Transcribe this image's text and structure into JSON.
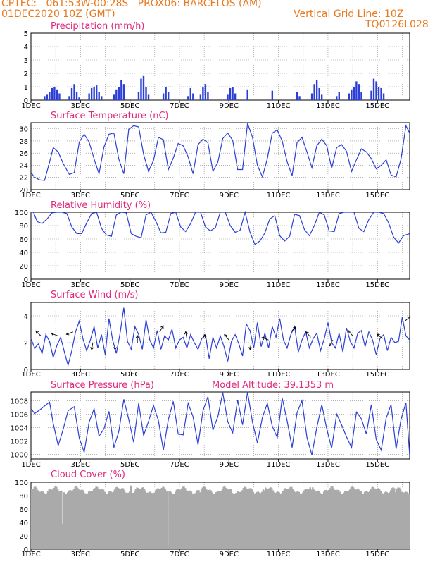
{
  "header": {
    "line1": "CPTEC:   061:53W-00:28S   PROX06: BARCELOS (AM)",
    "date": "01DEC2020 10Z (GMT)",
    "grid_note": "Vertical Grid Line: 10Z",
    "code": "TQ0126L028"
  },
  "x_ticks": [
    "1DEC",
    "3DEC",
    "5DEC",
    "7DEC",
    "9DEC",
    "11DEC",
    "13DEC",
    "15DEC"
  ],
  "colors": {
    "header": "#e8791f",
    "title": "#e0287c",
    "line": "#2b3fd6",
    "bar": "#2b3fd6",
    "cloud": "#aaaaaa"
  },
  "chart_data": [
    {
      "type": "bar",
      "title": "Precipitation (mm/h)",
      "ylim": [
        0,
        5
      ],
      "yticks": [
        0,
        1,
        2,
        3,
        4,
        5
      ],
      "x_range_days": [
        1,
        16.3
      ],
      "bars": [
        [
          1.55,
          0.3
        ],
        [
          1.65,
          0.4
        ],
        [
          1.75,
          0.6
        ],
        [
          1.85,
          0.9
        ],
        [
          1.95,
          1.0
        ],
        [
          2.05,
          0.8
        ],
        [
          2.15,
          0.5
        ],
        [
          2.55,
          0.3
        ],
        [
          2.65,
          0.9
        ],
        [
          2.75,
          1.2
        ],
        [
          2.85,
          0.6
        ],
        [
          2.95,
          0.2
        ],
        [
          3.35,
          0.5
        ],
        [
          3.45,
          0.9
        ],
        [
          3.55,
          1.0
        ],
        [
          3.65,
          1.1
        ],
        [
          3.75,
          0.6
        ],
        [
          3.85,
          0.3
        ],
        [
          4.35,
          0.4
        ],
        [
          4.45,
          0.8
        ],
        [
          4.55,
          1.0
        ],
        [
          4.65,
          1.5
        ],
        [
          4.75,
          1.2
        ],
        [
          5.35,
          0.6
        ],
        [
          5.45,
          1.6
        ],
        [
          5.55,
          1.8
        ],
        [
          5.65,
          1.0
        ],
        [
          5.75,
          0.4
        ],
        [
          6.35,
          0.5
        ],
        [
          6.45,
          1.0
        ],
        [
          6.55,
          0.6
        ],
        [
          7.35,
          0.3
        ],
        [
          7.45,
          0.9
        ],
        [
          7.55,
          0.5
        ],
        [
          7.85,
          0.4
        ],
        [
          7.95,
          1.0
        ],
        [
          8.05,
          1.2
        ],
        [
          8.15,
          0.6
        ],
        [
          8.95,
          0.4
        ],
        [
          9.05,
          0.9
        ],
        [
          9.15,
          1.0
        ],
        [
          9.25,
          0.5
        ],
        [
          9.75,
          0.8
        ],
        [
          10.75,
          0.7
        ],
        [
          11.75,
          0.6
        ],
        [
          11.85,
          0.3
        ],
        [
          12.35,
          0.5
        ],
        [
          12.45,
          1.2
        ],
        [
          12.55,
          1.5
        ],
        [
          12.65,
          0.9
        ],
        [
          12.75,
          0.4
        ],
        [
          13.35,
          0.3
        ],
        [
          13.45,
          0.6
        ],
        [
          13.85,
          0.5
        ],
        [
          13.95,
          0.8
        ],
        [
          14.05,
          1.0
        ],
        [
          14.15,
          1.4
        ],
        [
          14.25,
          1.2
        ],
        [
          14.35,
          0.6
        ],
        [
          14.75,
          0.7
        ],
        [
          14.85,
          1.6
        ],
        [
          14.95,
          1.4
        ],
        [
          15.05,
          1.0
        ],
        [
          15.15,
          0.9
        ],
        [
          15.25,
          0.5
        ]
      ]
    },
    {
      "type": "line",
      "title": "Surface Temperature (nC)",
      "ylim": [
        20,
        31
      ],
      "yticks": [
        20,
        22,
        24,
        26,
        28,
        30
      ],
      "x_range_days": [
        1,
        16.3
      ],
      "x": [
        1.0,
        1.15,
        1.35,
        1.55,
        1.75,
        1.9,
        2.1,
        2.3,
        2.55,
        2.75,
        2.95,
        3.15,
        3.35,
        3.6,
        3.75,
        3.95,
        4.15,
        4.35,
        4.55,
        4.75,
        4.95,
        5.15,
        5.35,
        5.55,
        5.75,
        5.95,
        6.15,
        6.35,
        6.55,
        6.75,
        6.95,
        7.15,
        7.35,
        7.55,
        7.75,
        7.95,
        8.15,
        8.35,
        8.55,
        8.75,
        8.95,
        9.15,
        9.35,
        9.55,
        9.75,
        9.95,
        10.15,
        10.35,
        10.55,
        10.75,
        10.95,
        11.15,
        11.35,
        11.55,
        11.75,
        11.95,
        12.15,
        12.35,
        12.55,
        12.75,
        12.95,
        13.15,
        13.35,
        13.55,
        13.75,
        13.95,
        14.15,
        14.35,
        14.55,
        14.75,
        14.95,
        15.15,
        15.35,
        15.55,
        15.75,
        15.95,
        16.15,
        16.3
      ],
      "y": [
        22.8,
        22.0,
        21.6,
        21.5,
        24.5,
        26.9,
        26.2,
        24.3,
        22.5,
        22.8,
        27.8,
        29.1,
        27.8,
        24.4,
        22.6,
        27.0,
        29.1,
        29.3,
        25.0,
        22.6,
        29.9,
        30.5,
        30.3,
        25.8,
        23.0,
        24.8,
        28.6,
        28.2,
        23.3,
        25.2,
        27.6,
        27.2,
        25.4,
        22.6,
        27.4,
        28.3,
        27.7,
        23.0,
        24.5,
        28.4,
        29.3,
        28.1,
        23.3,
        23.3,
        30.9,
        28.6,
        24.0,
        22.1,
        25.1,
        29.3,
        29.8,
        28.0,
        24.6,
        22.3,
        27.7,
        28.6,
        26.2,
        23.6,
        27.2,
        28.3,
        27.2,
        23.5,
        26.9,
        27.4,
        26.3,
        23.0,
        24.9,
        26.7,
        26.2,
        25.1,
        23.4,
        24.0,
        24.9,
        22.4,
        22.1,
        25.0,
        30.5,
        29.3
      ]
    },
    {
      "type": "line",
      "title": "Relative Humidity (%)",
      "ylim": [
        0,
        100
      ],
      "yticks": [
        0,
        20,
        40,
        60,
        80,
        100
      ],
      "x_range_days": [
        1,
        16.3
      ],
      "x": [
        1.0,
        1.1,
        1.25,
        1.45,
        1.65,
        1.85,
        2.05,
        2.25,
        2.45,
        2.65,
        2.85,
        3.05,
        3.25,
        3.45,
        3.65,
        3.85,
        4.05,
        4.25,
        4.45,
        4.65,
        4.85,
        5.05,
        5.25,
        5.45,
        5.65,
        5.85,
        6.05,
        6.25,
        6.45,
        6.65,
        6.85,
        7.05,
        7.25,
        7.45,
        7.65,
        7.85,
        8.05,
        8.25,
        8.45,
        8.65,
        8.85,
        9.05,
        9.25,
        9.45,
        9.65,
        9.85,
        10.05,
        10.25,
        10.45,
        10.65,
        10.85,
        11.05,
        11.25,
        11.45,
        11.65,
        11.85,
        12.05,
        12.25,
        12.45,
        12.65,
        12.85,
        13.05,
        13.25,
        13.45,
        13.65,
        13.85,
        14.05,
        14.25,
        14.45,
        14.65,
        14.85,
        15.05,
        15.25,
        15.45,
        15.65,
        15.85,
        16.05,
        16.3
      ],
      "y": [
        100,
        100,
        86,
        83,
        90,
        99,
        100,
        100,
        98,
        78,
        68,
        68,
        84,
        98,
        100,
        76,
        66,
        64,
        96,
        100,
        99,
        68,
        64,
        62,
        96,
        100,
        86,
        69,
        70,
        98,
        100,
        78,
        71,
        83,
        100,
        100,
        78,
        72,
        77,
        100,
        100,
        80,
        70,
        73,
        100,
        70,
        52,
        57,
        69,
        90,
        95,
        65,
        57,
        64,
        97,
        95,
        74,
        65,
        80,
        100,
        96,
        72,
        71,
        98,
        100,
        100,
        100,
        76,
        71,
        89,
        100,
        100,
        98,
        84,
        63,
        54,
        65,
        68
      ]
    },
    {
      "type": "line",
      "title": "Surface Wind (m/s)",
      "ylim": [
        0,
        5
      ],
      "yticks": [
        0,
        2,
        4
      ],
      "x_range_days": [
        1,
        16.3
      ],
      "x": [
        1.0,
        1.15,
        1.3,
        1.45,
        1.6,
        1.75,
        1.9,
        2.05,
        2.2,
        2.35,
        2.5,
        2.65,
        2.8,
        2.95,
        3.1,
        3.25,
        3.4,
        3.55,
        3.7,
        3.85,
        4.0,
        4.15,
        4.3,
        4.45,
        4.6,
        4.75,
        4.9,
        5.05,
        5.2,
        5.35,
        5.5,
        5.65,
        5.8,
        5.95,
        6.1,
        6.25,
        6.4,
        6.55,
        6.7,
        6.85,
        7.0,
        7.15,
        7.3,
        7.45,
        7.6,
        7.75,
        7.9,
        8.05,
        8.2,
        8.35,
        8.5,
        8.65,
        8.8,
        8.95,
        9.1,
        9.25,
        9.4,
        9.55,
        9.7,
        9.85,
        10.0,
        10.15,
        10.3,
        10.45,
        10.6,
        10.75,
        10.9,
        11.05,
        11.2,
        11.35,
        11.5,
        11.65,
        11.8,
        11.95,
        12.1,
        12.25,
        12.4,
        12.55,
        12.7,
        12.85,
        13.0,
        13.15,
        13.3,
        13.45,
        13.6,
        13.75,
        13.9,
        14.05,
        14.2,
        14.35,
        14.5,
        14.65,
        14.8,
        14.95,
        15.1,
        15.25,
        15.4,
        15.55,
        15.7,
        15.85,
        16.0,
        16.15,
        16.3
      ],
      "y": [
        2.3,
        1.6,
        1.9,
        1.2,
        2.6,
        2.1,
        0.9,
        1.8,
        2.4,
        1.3,
        0.3,
        1.4,
        2.8,
        3.6,
        2.3,
        1.4,
        2.2,
        3.2,
        1.6,
        2.6,
        1.1,
        3.8,
        2.2,
        1.2,
        2.7,
        4.6,
        2.1,
        1.5,
        3.2,
        2.6,
        1.5,
        3.7,
        2.2,
        1.6,
        2.9,
        1.5,
        2.5,
        2.2,
        3.0,
        1.6,
        2.2,
        2.4,
        1.6,
        2.6,
        2.0,
        1.5,
        2.3,
        2.6,
        0.8,
        2.4,
        1.6,
        2.5,
        1.7,
        0.6,
        2.1,
        2.6,
        1.9,
        1.0,
        3.4,
        2.9,
        1.6,
        3.5,
        1.7,
        2.7,
        1.6,
        3.2,
        2.4,
        3.8,
        2.2,
        1.6,
        2.6,
        3.2,
        1.3,
        2.2,
        2.8,
        1.6,
        2.3,
        2.7,
        1.4,
        2.3,
        3.5,
        2.0,
        1.6,
        2.7,
        1.3,
        3.1,
        2.1,
        1.6,
        2.7,
        2.9,
        1.7,
        2.8,
        2.2,
        1.1,
        2.3,
        2.6,
        1.4,
        2.4,
        2.0,
        2.1,
        3.9,
        2.5,
        2.2
      ]
    },
    {
      "type": "line",
      "title": "Surface Pressure (hPa)",
      "annotation": "Model Altitude: 39.1353 m",
      "ylim": [
        999.3,
        1009.3
      ],
      "yticks": [
        1000,
        1002,
        1004,
        1006,
        1008
      ],
      "x_range_days": [
        1,
        16.3
      ],
      "x": [
        1.0,
        1.15,
        1.35,
        1.55,
        1.75,
        1.9,
        2.1,
        2.3,
        2.5,
        2.75,
        2.95,
        3.15,
        3.35,
        3.55,
        3.75,
        3.95,
        4.15,
        4.35,
        4.55,
        4.75,
        4.95,
        5.15,
        5.35,
        5.55,
        5.75,
        5.95,
        6.15,
        6.35,
        6.55,
        6.75,
        6.95,
        7.15,
        7.35,
        7.55,
        7.75,
        7.95,
        8.15,
        8.35,
        8.55,
        8.75,
        8.95,
        9.15,
        9.35,
        9.55,
        9.75,
        9.95,
        10.15,
        10.35,
        10.55,
        10.75,
        10.95,
        11.15,
        11.35,
        11.55,
        11.75,
        11.95,
        12.15,
        12.35,
        12.55,
        12.75,
        12.95,
        13.15,
        13.35,
        13.55,
        13.75,
        13.95,
        14.15,
        14.35,
        14.55,
        14.75,
        14.95,
        15.15,
        15.35,
        15.55,
        15.75,
        15.95,
        16.15,
        16.3
      ],
      "y": [
        1006.8,
        1006.1,
        1006.6,
        1007.2,
        1007.8,
        1004.6,
        1001.3,
        1003.7,
        1006.5,
        1007.1,
        1002.4,
        1000.3,
        1004.8,
        1006.8,
        1002.7,
        1003.8,
        1006.4,
        1001.0,
        1003.4,
        1008.2,
        1005.2,
        1001.8,
        1007.6,
        1002.8,
        1004.9,
        1007.3,
        1005.0,
        1000.6,
        1005.2,
        1007.9,
        1003.0,
        1002.9,
        1007.6,
        1005.6,
        1001.4,
        1006.5,
        1008.6,
        1003.6,
        1005.6,
        1009.2,
        1004.9,
        1003.2,
        1008.1,
        1004.4,
        1009.3,
        1004.8,
        1001.7,
        1005.5,
        1007.6,
        1004.2,
        1002.5,
        1008.4,
        1005.0,
        1001.0,
        1006.2,
        1008.0,
        1002.5,
        999.9,
        1004.0,
        1007.4,
        1003.8,
        1000.9,
        1006.0,
        1004.4,
        1002.6,
        1001.0,
        1006.3,
        1005.3,
        1003.0,
        1007.4,
        1002.2,
        1000.6,
        1005.4,
        1007.4,
        1000.8,
        1005.2,
        1007.7,
        999.8
      ]
    },
    {
      "type": "bar",
      "title": "Cloud Cover (%)",
      "ylim": [
        0,
        100
      ],
      "yticks": [
        0,
        20,
        40,
        60,
        80,
        100
      ],
      "x_range_days": [
        1,
        16.3
      ],
      "baseline": 88,
      "dips": [
        [
          2.25,
          38
        ],
        [
          2.35,
          82
        ],
        [
          3.5,
          90
        ],
        [
          4.1,
          86
        ],
        [
          5.0,
          95
        ],
        [
          6.5,
          6
        ],
        [
          7.8,
          85
        ],
        [
          9.1,
          84
        ],
        [
          10.4,
          88
        ],
        [
          12.3,
          89
        ],
        [
          14.3,
          87
        ],
        [
          15.7,
          85
        ]
      ]
    }
  ]
}
